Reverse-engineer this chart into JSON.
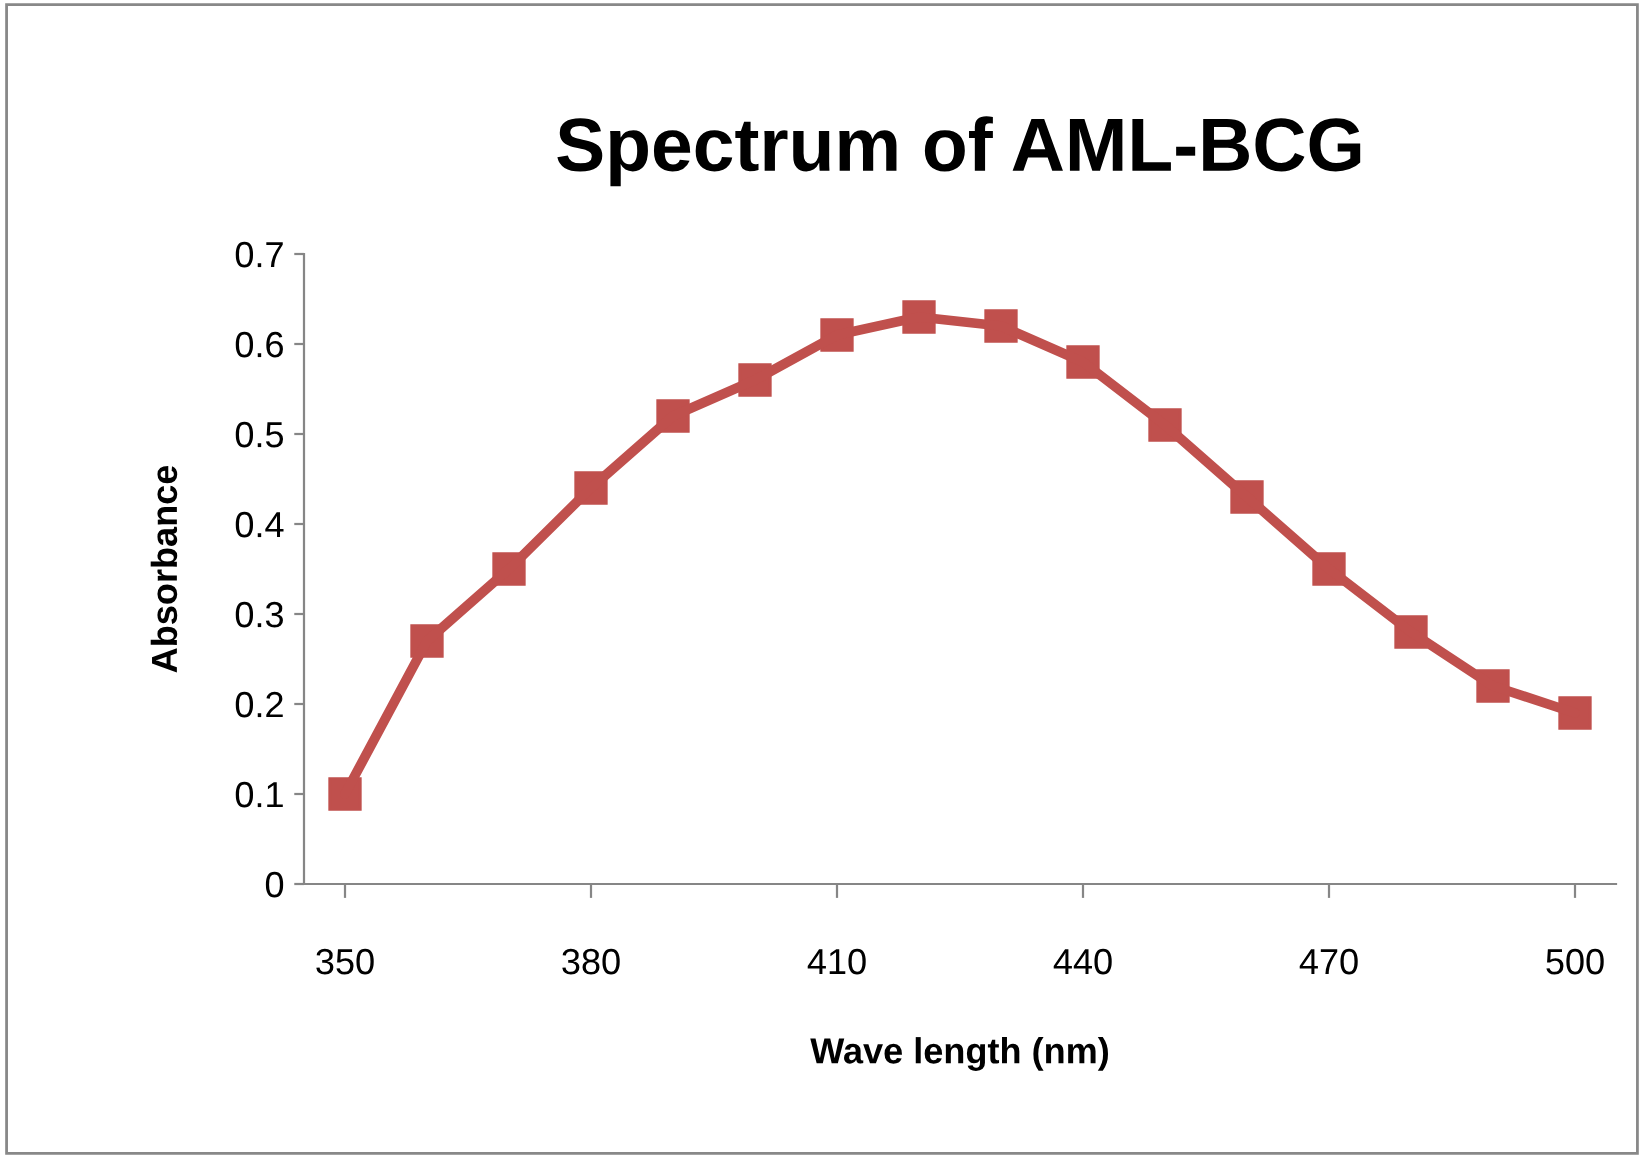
{
  "chart_data": {
    "type": "line",
    "title": "Spectrum of AML-BCG",
    "xlabel": "Wave length (nm)",
    "ylabel": "Absorbance",
    "x": [
      350,
      360,
      370,
      380,
      390,
      400,
      410,
      420,
      430,
      440,
      450,
      460,
      470,
      480,
      490,
      500
    ],
    "series": [
      {
        "color": "#c0504d",
        "values": [
          0.1,
          0.27,
          0.35,
          0.44,
          0.52,
          0.56,
          0.61,
          0.63,
          0.62,
          0.58,
          0.51,
          0.43,
          0.35,
          0.28,
          0.22,
          0.19
        ]
      }
    ],
    "xlim": [
      345,
      505
    ],
    "xticks": [
      350,
      380,
      410,
      440,
      470,
      500
    ],
    "ylim": [
      0,
      0.7
    ],
    "yticks": [
      0,
      0.1,
      0.2,
      0.3,
      0.4,
      0.5,
      0.6,
      0.7
    ],
    "grid": false,
    "marker": "square",
    "line_style": "solid"
  }
}
